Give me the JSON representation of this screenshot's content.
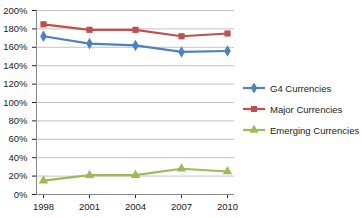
{
  "chart_data": {
    "type": "line",
    "categories": [
      "1998",
      "2001",
      "2004",
      "2007",
      "2010"
    ],
    "series": [
      {
        "name": "G4 Currencies",
        "color": "#4f81bd",
        "marker": "diamond",
        "values": [
          172,
          164,
          162,
          155,
          156
        ]
      },
      {
        "name": "Major Currencies",
        "color": "#c0504d",
        "marker": "square",
        "values": [
          185,
          179,
          179,
          172,
          175
        ]
      },
      {
        "name": "Emerging Currencies",
        "color": "#9bbb59",
        "marker": "triangle",
        "values": [
          15,
          21,
          21,
          28,
          25
        ]
      }
    ],
    "ylim": [
      0,
      200
    ],
    "yticks": [
      {
        "value": 0,
        "label": "0%"
      },
      {
        "value": 20,
        "label": "20%"
      },
      {
        "value": 40,
        "label": "40%"
      },
      {
        "value": 60,
        "label": "60%"
      },
      {
        "value": 80,
        "label": "80%"
      },
      {
        "value": 100,
        "label": "100%"
      },
      {
        "value": 120,
        "label": "120%"
      },
      {
        "value": 140,
        "label": "140%"
      },
      {
        "value": 160,
        "label": "160%"
      },
      {
        "value": 180,
        "label": "180%"
      },
      {
        "value": 200,
        "label": "200%"
      }
    ],
    "grid": true,
    "legend": "right"
  }
}
